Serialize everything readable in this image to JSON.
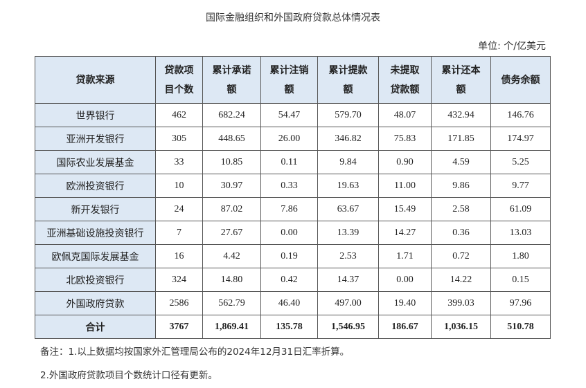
{
  "title": "国际金融组织和外国政府贷款总体情况表",
  "unit": "单位: 个/亿美元",
  "table": {
    "headers": [
      [
        "贷款来源"
      ],
      [
        "贷款项",
        "目个数"
      ],
      [
        "累计承诺",
        "额"
      ],
      [
        "累计注销",
        "额"
      ],
      [
        "累计提款",
        "额"
      ],
      [
        "未提取",
        "贷款额"
      ],
      [
        "累计还本",
        "额"
      ],
      [
        "债务余额"
      ]
    ],
    "rows": [
      [
        "世界银行",
        "462",
        "682.24",
        "54.47",
        "579.70",
        "48.07",
        "432.94",
        "146.76"
      ],
      [
        "亚洲开发银行",
        "305",
        "448.65",
        "26.00",
        "346.82",
        "75.83",
        "171.85",
        "174.97"
      ],
      [
        "国际农业发展基金",
        "33",
        "10.85",
        "0.11",
        "9.84",
        "0.90",
        "4.59",
        "5.25"
      ],
      [
        "欧洲投资银行",
        "10",
        "30.97",
        "0.33",
        "19.63",
        "11.00",
        "9.86",
        "9.77"
      ],
      [
        "新开发银行",
        "24",
        "87.02",
        "7.86",
        "63.67",
        "15.49",
        "2.58",
        "61.09"
      ],
      [
        "亚洲基础设施投资银行",
        "7",
        "27.67",
        "0.00",
        "13.39",
        "14.27",
        "0.36",
        "13.03"
      ],
      [
        "欧佩克国际发展基金",
        "16",
        "4.42",
        "0.19",
        "2.53",
        "1.71",
        "0.72",
        "1.80"
      ],
      [
        "北欧投资银行",
        "324",
        "14.80",
        "0.42",
        "14.37",
        "0.00",
        "14.22",
        "0.15"
      ],
      [
        "外国政府贷款",
        "2586",
        "562.79",
        "46.40",
        "497.00",
        "19.40",
        "399.03",
        "97.96"
      ]
    ],
    "total": [
      "合计",
      "3767",
      "1,869.41",
      "135.78",
      "1,546.95",
      "186.67",
      "1,036.15",
      "510.78"
    ]
  },
  "notes": [
    "备注：1.以上数据均按国家外汇管理局公布的2024年12月31日汇率折算。",
    "2.外国政府贷款项目个数统计口径有更新。"
  ]
}
